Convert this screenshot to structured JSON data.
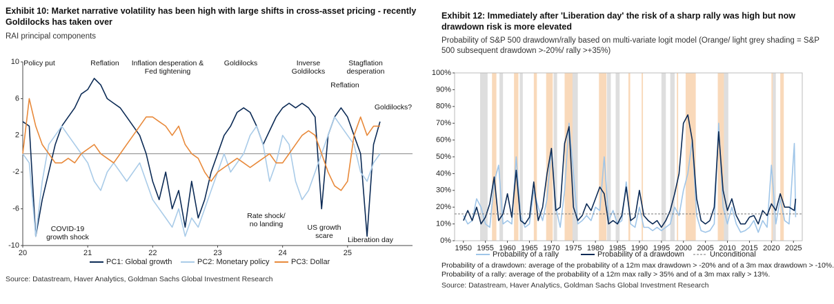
{
  "chart_data": [
    {
      "type": "line",
      "title": "Exhibit 10: Market narrative volatility has been high with large shifts in cross-asset pricing - recently Goldilocks has taken over",
      "subtitle": "RAI principal components",
      "x": [
        2020,
        2020.1,
        2020.2,
        2020.3,
        2020.4,
        2020.5,
        2020.6,
        2020.7,
        2020.8,
        2020.9,
        2021,
        2021.1,
        2021.2,
        2021.3,
        2021.4,
        2021.5,
        2021.6,
        2021.7,
        2021.8,
        2021.9,
        2022,
        2022.1,
        2022.2,
        2022.3,
        2022.4,
        2022.5,
        2022.6,
        2022.7,
        2022.8,
        2022.9,
        2023,
        2023.1,
        2023.2,
        2023.3,
        2023.4,
        2023.5,
        2023.6,
        2023.7,
        2023.8,
        2023.9,
        2024,
        2024.1,
        2024.2,
        2024.3,
        2024.4,
        2024.5,
        2024.6,
        2024.7,
        2024.8,
        2024.9,
        2025,
        2025.1,
        2025.2,
        2025.3,
        2025.4,
        2025.5
      ],
      "xlim": [
        2020,
        2026
      ],
      "xticks": [
        {
          "value": 2020,
          "label": "20"
        },
        {
          "value": 2021,
          "label": "21"
        },
        {
          "value": 2022,
          "label": "22"
        },
        {
          "value": 2023,
          "label": "23"
        },
        {
          "value": 2024,
          "label": "24"
        },
        {
          "value": 2025,
          "label": "25"
        }
      ],
      "ylim": [
        -10,
        10
      ],
      "yticks": [
        -10,
        -6,
        -2,
        2,
        6,
        10
      ],
      "zero_line": 0,
      "series": [
        {
          "name": "PC1: Global growth",
          "color": "#0b2a55",
          "values": [
            3.5,
            3,
            -9,
            -5,
            -2,
            1,
            3,
            4,
            5,
            6.5,
            7,
            8.2,
            7.5,
            6,
            5.5,
            5,
            4,
            3,
            2,
            0,
            -3,
            -5,
            -2,
            -6,
            -4,
            -8,
            -3,
            -7,
            -5,
            -2,
            0,
            2,
            3,
            4.5,
            5,
            4.5,
            3,
            1,
            2.5,
            4,
            5,
            5.5,
            5,
            5.5,
            5,
            4,
            -6,
            2,
            4,
            5,
            4,
            2,
            0,
            -9,
            1,
            3.5
          ]
        },
        {
          "name": "PC2: Monetary policy",
          "color": "#a9cbe8",
          "values": [
            0,
            -1,
            -9,
            -3,
            1,
            2,
            3,
            2,
            1,
            0,
            -1,
            -3,
            -4,
            -2,
            -1,
            -2,
            -3,
            -2,
            -1,
            -3,
            -5,
            -6,
            -7,
            -8,
            -6,
            -9,
            -7,
            -8,
            -6,
            -4,
            -2,
            0,
            -2,
            -1,
            0,
            2,
            3,
            1,
            -3,
            -1,
            2,
            1,
            -3,
            -5,
            -4,
            -2,
            0,
            2,
            4,
            3,
            2,
            1,
            -2,
            -3,
            -1,
            0
          ]
        },
        {
          "name": "PC3: Dollar",
          "color": "#e8893a",
          "values": [
            0,
            6,
            3,
            1,
            0,
            -1,
            -1,
            -0.5,
            -1,
            0,
            0.5,
            1,
            0,
            -0.5,
            -1,
            0,
            1,
            2,
            3,
            4,
            4,
            3.5,
            3,
            2,
            3,
            1,
            0,
            -0.5,
            -2,
            -3,
            -2,
            -1.5,
            -1,
            -0.5,
            -1,
            -1.5,
            -1,
            -0.5,
            0,
            -1,
            -1,
            0,
            1,
            2,
            2.5,
            2,
            0,
            -2,
            -3.5,
            -4,
            -3,
            2,
            4,
            2,
            3,
            3
          ]
        }
      ],
      "annotations": [
        "Policy put",
        "Reflation",
        "Inflation desperation & Fed tightening",
        "Goldilocks",
        "Inverse Goldilocks",
        "Stagflation desperation",
        "Reflation",
        "Goldilocks?",
        "COVID-19 growth shock",
        "Rate shock/ no landing",
        "US growth scare",
        "Liberation day"
      ],
      "source": "Source: Datastream, Haver Analytics, Goldman Sachs Global Investment Research"
    },
    {
      "type": "line",
      "title": "Exhibit 12: Immediately after 'Liberation day' the risk of a sharp rally was high but now drawdown risk is more elevated",
      "subtitle": "Probability of S&P 500 drawdown/rally based on multi-variate logit model (Orange/ light grey shading = S&P 500 subsequent drawdown >-20%/ rally >+35%)",
      "x": [
        1950,
        1951,
        1952,
        1953,
        1954,
        1955,
        1956,
        1957,
        1958,
        1959,
        1960,
        1961,
        1962,
        1963,
        1964,
        1965,
        1966,
        1967,
        1968,
        1969,
        1970,
        1971,
        1972,
        1973,
        1974,
        1975,
        1976,
        1977,
        1978,
        1979,
        1980,
        1981,
        1982,
        1983,
        1984,
        1985,
        1986,
        1987,
        1988,
        1989,
        1990,
        1991,
        1992,
        1993,
        1994,
        1995,
        1996,
        1997,
        1998,
        1999,
        2000,
        2001,
        2002,
        2003,
        2004,
        2005,
        2006,
        2007,
        2008,
        2009,
        2010,
        2011,
        2012,
        2013,
        2014,
        2015,
        2016,
        2017,
        2018,
        2019,
        2020,
        2021,
        2022,
        2023,
        2024,
        2025.2,
        2025.5
      ],
      "xlim": [
        1948,
        2027
      ],
      "xticks": [
        1950,
        1955,
        1960,
        1965,
        1970,
        1975,
        1980,
        1985,
        1990,
        1995,
        2000,
        2005,
        2010,
        2015,
        2020,
        2025
      ],
      "ylim": [
        0,
        100
      ],
      "yticks": [
        {
          "value": 0,
          "label": "0%"
        },
        {
          "value": 10,
          "label": "10%"
        },
        {
          "value": 20,
          "label": "20%"
        },
        {
          "value": 30,
          "label": "30%"
        },
        {
          "value": 40,
          "label": "40%"
        },
        {
          "value": 50,
          "label": "50%"
        },
        {
          "value": 60,
          "label": "60%"
        },
        {
          "value": 70,
          "label": "70%"
        },
        {
          "value": 80,
          "label": "80%"
        },
        {
          "value": 90,
          "label": "90%"
        },
        {
          "value": 100,
          "label": "100%"
        }
      ],
      "shading": [
        {
          "color": "#f7cfa9",
          "ranges": [
            [
              1956.5,
              1957.5
            ],
            [
              1961.5,
              1962.5
            ],
            [
              1966,
              1966.7
            ],
            [
              1968.8,
              1970.3
            ],
            [
              1973,
              1974.8
            ],
            [
              1980.8,
              1982.5
            ],
            [
              1987.5,
              1987.9
            ],
            [
              1990.5,
              1990.8
            ],
            [
              1998.5,
              1998.8
            ],
            [
              2000.5,
              2002.8
            ],
            [
              2007.8,
              2009.2
            ],
            [
              2020,
              2020.3
            ],
            [
              2022,
              2022.8
            ]
          ]
        },
        {
          "color": "#d6d6d6",
          "ranges": [
            [
              1953.8,
              1955.5
            ],
            [
              1958.2,
              1959
            ],
            [
              1962.8,
              1963.5
            ],
            [
              1970.5,
              1971.3
            ],
            [
              1974.8,
              1976
            ],
            [
              1982.6,
              1983.5
            ],
            [
              1984.6,
              1985.5
            ],
            [
              1995,
              1996
            ],
            [
              1997,
              1998
            ],
            [
              2009.2,
              2010.2
            ],
            [
              2020.3,
              2021
            ]
          ]
        }
      ],
      "series": [
        {
          "name": "Probability of a rally",
          "color": "#9fc5e8",
          "values": [
            15,
            10,
            12,
            25,
            20,
            10,
            8,
            35,
            45,
            10,
            12,
            10,
            50,
            15,
            8,
            10,
            30,
            20,
            12,
            25,
            55,
            20,
            8,
            30,
            70,
            40,
            10,
            12,
            15,
            12,
            20,
            18,
            50,
            12,
            18,
            10,
            12,
            35,
            10,
            8,
            20,
            8,
            8,
            6,
            8,
            6,
            8,
            10,
            20,
            15,
            30,
            40,
            60,
            15,
            6,
            5,
            6,
            10,
            70,
            20,
            10,
            20,
            10,
            5,
            6,
            8,
            12,
            5,
            12,
            8,
            45,
            10,
            25,
            12,
            10,
            58,
            14
          ]
        },
        {
          "name": "Probability of a drawdown",
          "color": "#0b2a55",
          "values": [
            12,
            18,
            12,
            20,
            10,
            14,
            22,
            38,
            12,
            16,
            28,
            14,
            42,
            12,
            10,
            14,
            35,
            12,
            20,
            40,
            55,
            18,
            20,
            58,
            68,
            20,
            12,
            15,
            22,
            18,
            25,
            32,
            28,
            10,
            12,
            10,
            15,
            32,
            12,
            14,
            30,
            15,
            12,
            10,
            12,
            8,
            12,
            18,
            28,
            40,
            70,
            75,
            60,
            25,
            12,
            10,
            12,
            20,
            65,
            30,
            18,
            25,
            15,
            10,
            10,
            14,
            15,
            10,
            18,
            15,
            22,
            18,
            28,
            20,
            20,
            18,
            25
          ]
        }
      ],
      "reference_lines": [
        {
          "name": "Unconditional",
          "value": 16,
          "color": "#777777",
          "dash": true
        }
      ],
      "notes": [
        "Probability of a drawdown: average of the probability of a 12m max drawdown > -20% and of a 3m max drawdown > -10%.",
        "Probability of a rally: average of the probability of a 12m max rally > 35% and of a 3m max rally > 13%."
      ],
      "source": "Source: Datastream, Haver Analytics, Goldman Sachs Global Investment Research"
    }
  ]
}
